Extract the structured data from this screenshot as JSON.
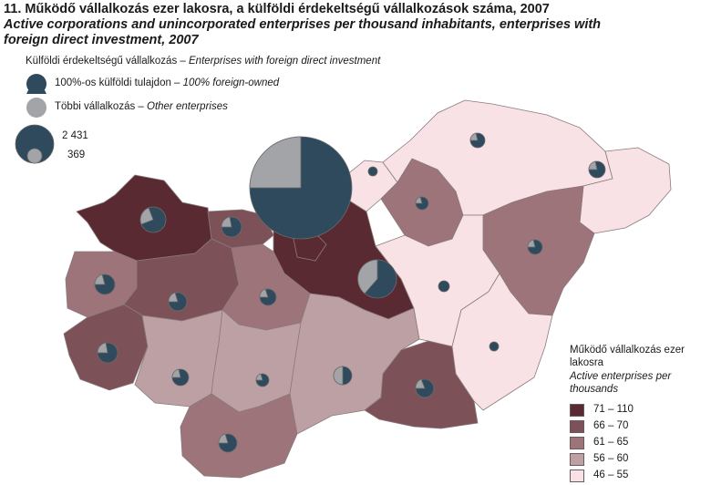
{
  "title": {
    "number": "11.",
    "hu": "Működő vállalkozás ezer lakosra, a külföldi érdekeltségű vállalkozások száma, 2007",
    "en_line1": "Active corporations and unincorporated enterprises per thousand inhabitants, enterprises with",
    "en_line2": "foreign direct investment,  2007"
  },
  "symbol_legend": {
    "heading_hu": "Külföldi érdekeltségű vállalkozás – ",
    "heading_en": "Enterprises with foreign direct investment",
    "foreign_hu": "100%-os külföldi tulajdon – ",
    "foreign_en": "100% foreign-owned",
    "other_hu": "Többi vállalkozás – ",
    "other_en": "Other enterprises",
    "size_max": "2 431",
    "size_min": "369"
  },
  "choropleth_legend": {
    "title_hu_1": "Működő vállalkozás ezer",
    "title_hu_2": "lakosra",
    "title_en_1": "Active enterprises per",
    "title_en_2": "thousands",
    "classes": [
      {
        "label": "71 –  110",
        "color": "#5a2a32"
      },
      {
        "label": "66 –   70",
        "color": "#7c5158"
      },
      {
        "label": "61 –   65",
        "color": "#9c7479"
      },
      {
        "label": "56 –   60",
        "color": "#bda0a3"
      },
      {
        "label": "46 –   55",
        "color": "#f9e2e5"
      }
    ]
  },
  "colors": {
    "foreign": "#2f4a5c",
    "other": "#a3a4a8",
    "outline": "#8a7a7d"
  }
}
